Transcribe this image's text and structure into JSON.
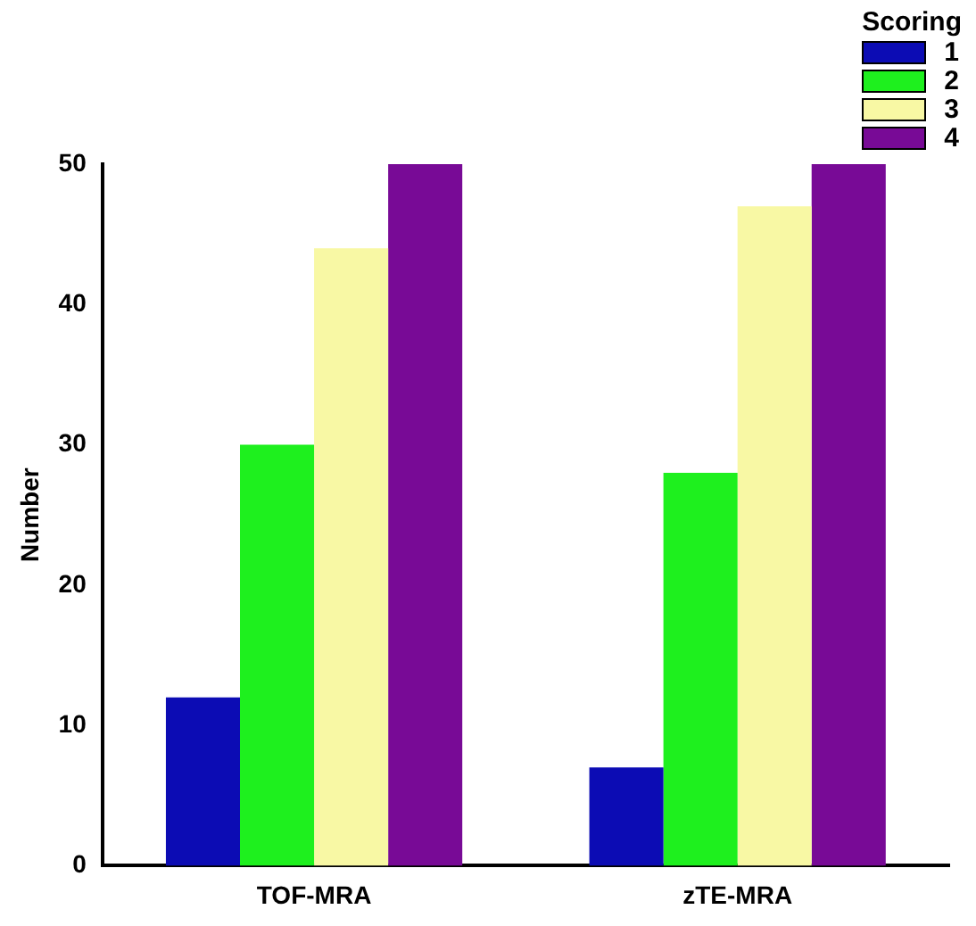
{
  "chart_data": {
    "type": "bar",
    "ylabel": "Number",
    "legend_title": "Scoring",
    "categories": [
      "TOF-MRA",
      "zTE-MRA"
    ],
    "series": [
      {
        "name": "1",
        "color": "#0c0cb4",
        "values": [
          12,
          7
        ]
      },
      {
        "name": "2",
        "color": "#1ef01e",
        "values": [
          30,
          28
        ]
      },
      {
        "name": "3",
        "color": "#f8f8a4",
        "values": [
          44,
          47
        ]
      },
      {
        "name": "4",
        "color": "#780a96",
        "values": [
          50,
          50
        ]
      }
    ],
    "ylim": [
      0,
      50
    ],
    "yticks": [
      0,
      10,
      20,
      30,
      40,
      50
    ],
    "grid": false,
    "legend": "top right"
  }
}
